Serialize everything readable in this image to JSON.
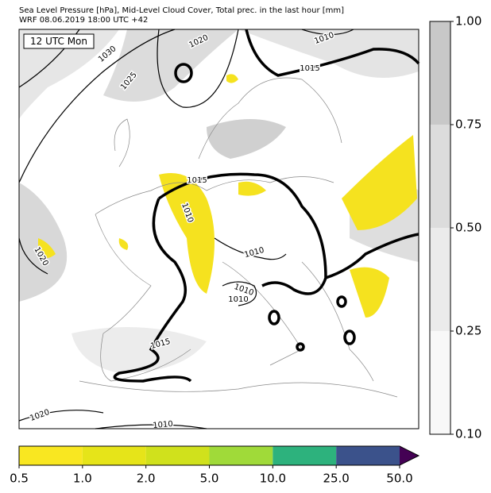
{
  "header": {
    "title": "Sea Level Pressure [hPa], Mid-Level Cloud Cover, Total prec. in the last hour [mm]",
    "subtitle": "WRF 08.06.2019 18:00 UTC +42"
  },
  "map": {
    "time_label": "12 UTC Mon",
    "isobar_labels": [
      "1020",
      "1030",
      "1025",
      "1010",
      "1015",
      "1015",
      "1010",
      "1020",
      "1010",
      "1010",
      "1010",
      "1015",
      "1020",
      "1010"
    ]
  },
  "cloud_colorbar": {
    "ticks": [
      "1.00",
      "0.75",
      "0.50",
      "0.25",
      "0.10"
    ],
    "colors": [
      "#c8c8c8",
      "#dcdcdc",
      "#ebebeb",
      "#f8f8f8"
    ]
  },
  "precip_colorbar": {
    "ticks": [
      "0.5",
      "1.0",
      "2.0",
      "5.0",
      "10.0",
      "25.0",
      "50.0"
    ],
    "colors": [
      "#f9e721",
      "#e6e419",
      "#d0e11c",
      "#a0da39",
      "#2db27d",
      "#3b528b"
    ],
    "extend_color": "#440154"
  }
}
